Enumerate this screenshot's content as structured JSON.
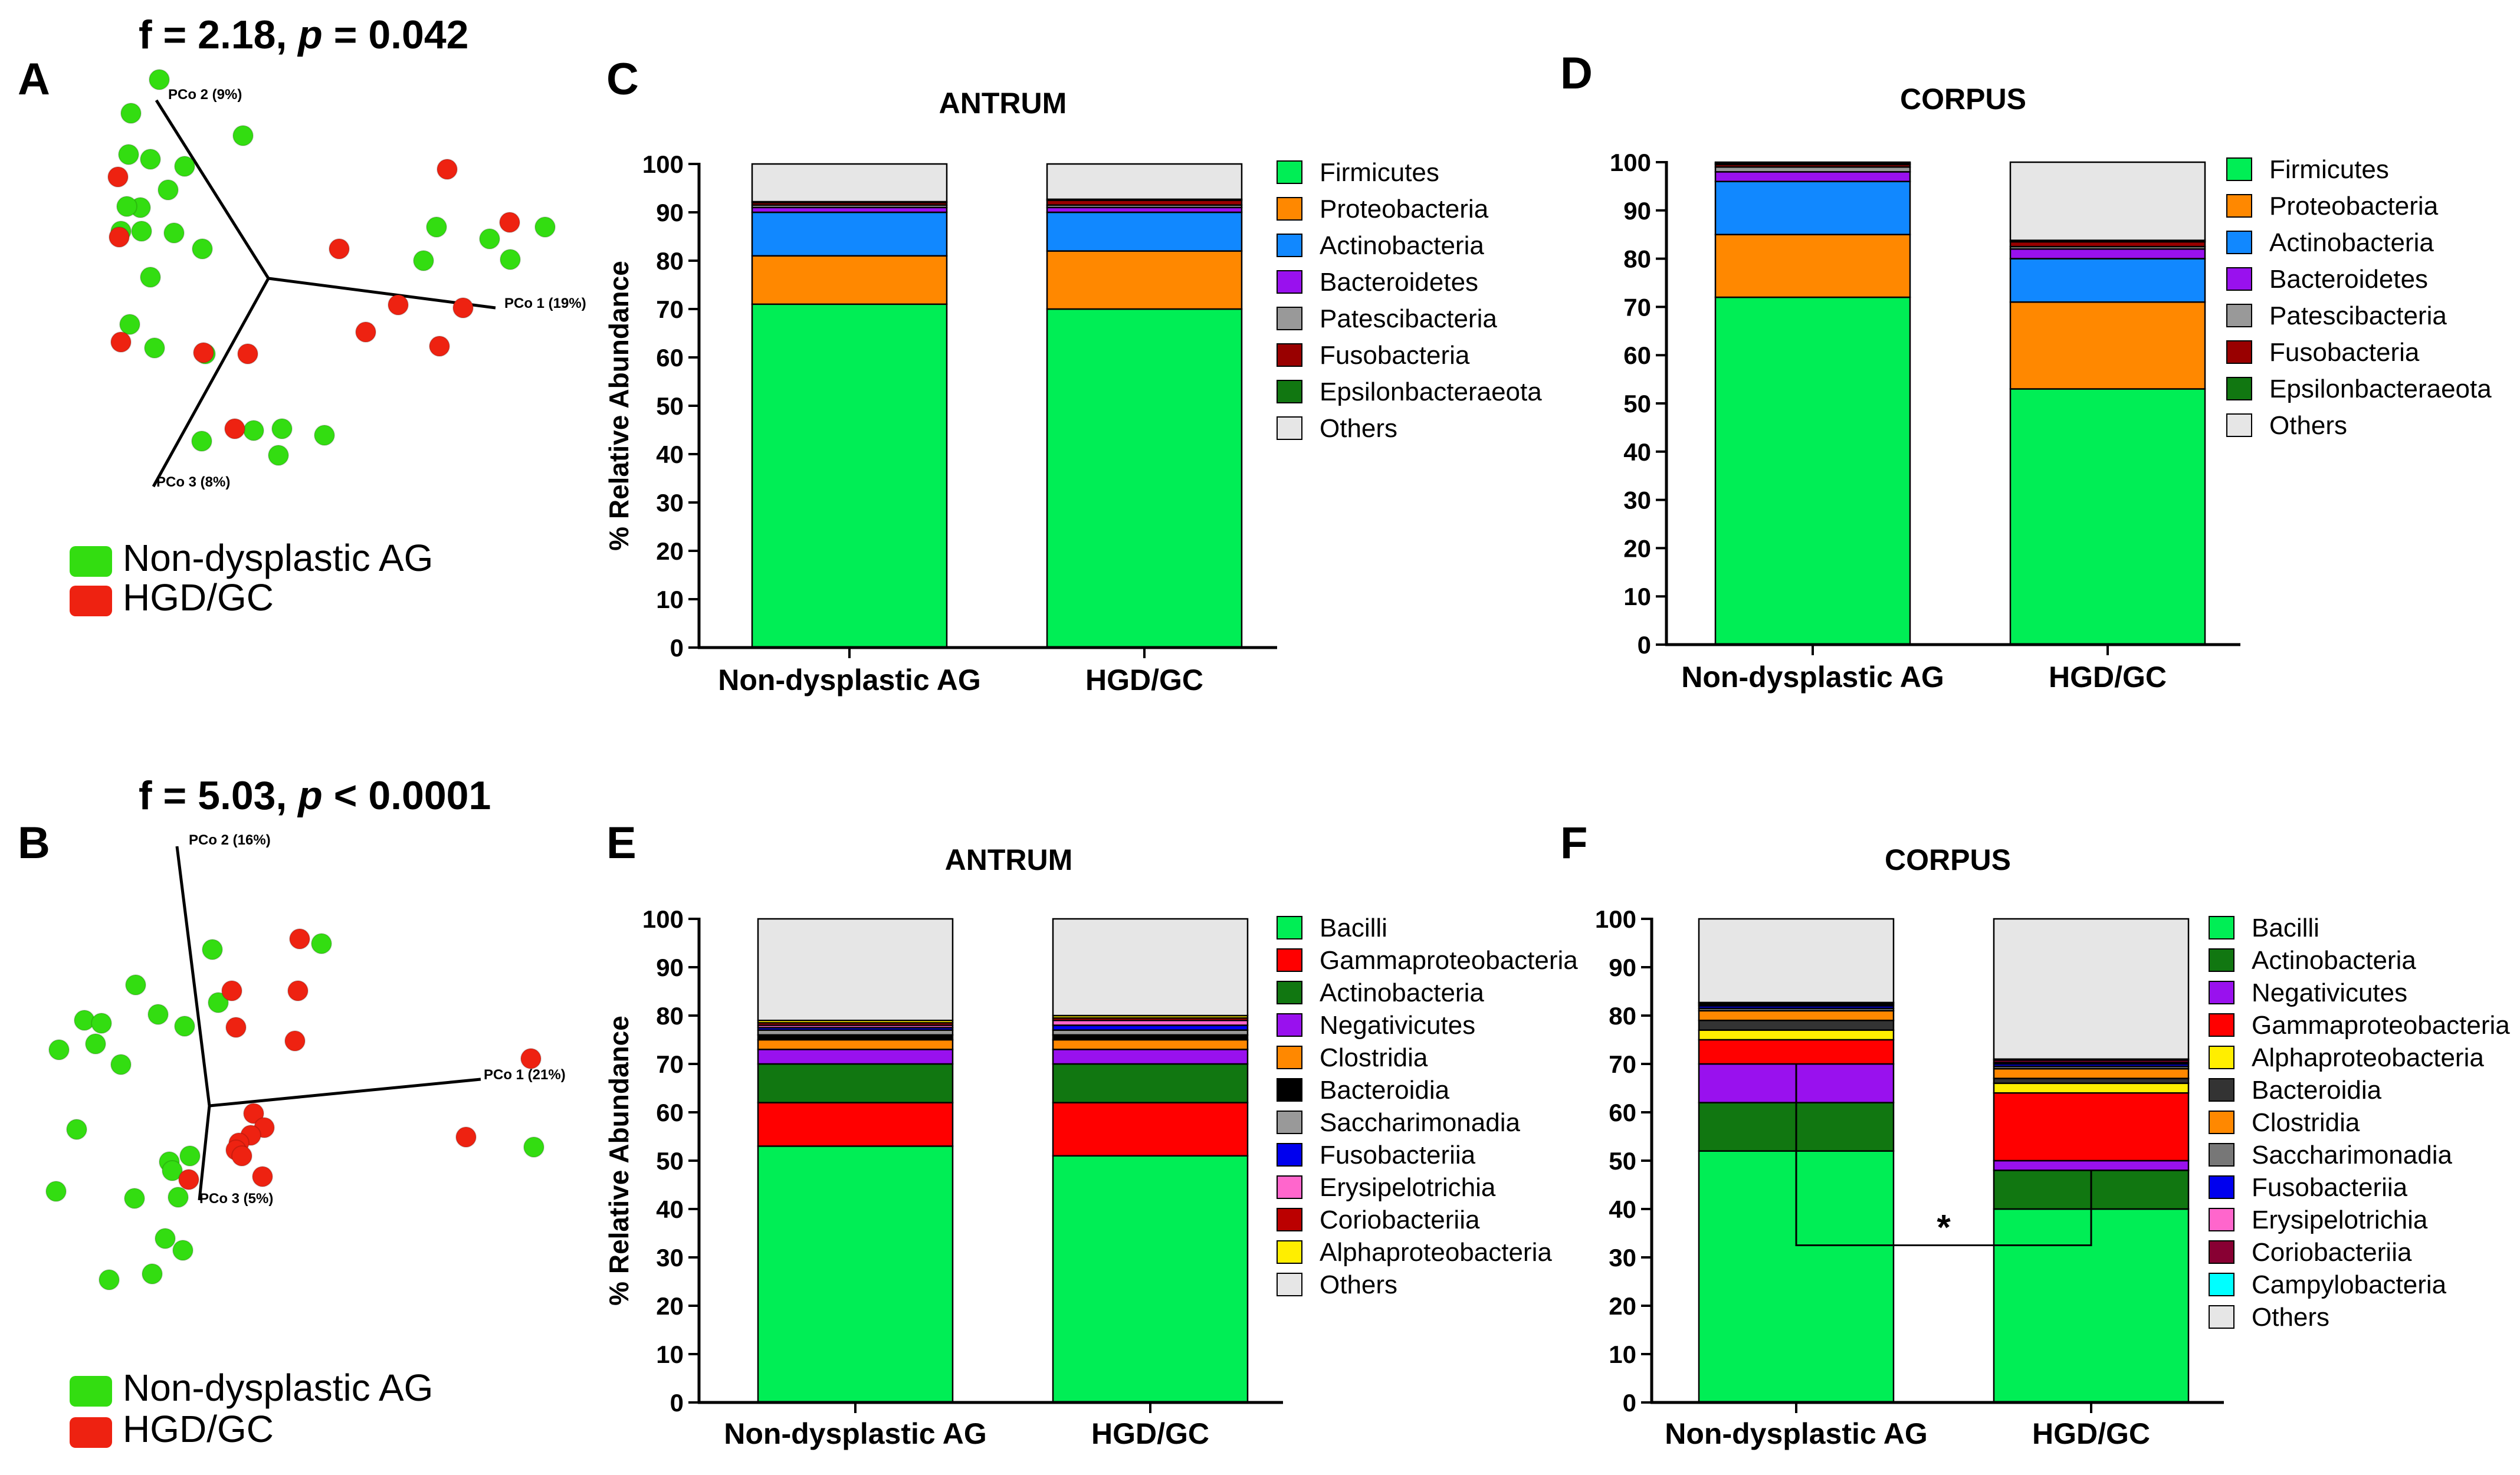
{
  "figure": {
    "panel_letters": [
      "A",
      "B",
      "C",
      "D",
      "E",
      "F"
    ]
  },
  "chart_data": [
    {
      "panel": "A",
      "type": "scatter",
      "subtype": "3d-pcoa",
      "stat_f": "f = 2.18, ",
      "stat_p_symbol": "p",
      "stat_p_value": " = 0.042",
      "axes": [
        "PCo 1 (19%)",
        "PCo 2 (9%)",
        "PCo 3 (8%)"
      ],
      "legend": [
        {
          "label": "Non-dysplastic AG",
          "color": "#33dd11"
        },
        {
          "label": "HGD/GC",
          "color": "#ee2211"
        }
      ],
      "groups": [
        {
          "name": "Non-dysplastic AG",
          "color": "#33dd11",
          "points": [
            [
              270,
              135
            ],
            [
              222,
              192
            ],
            [
              255,
              270
            ],
            [
              218,
              262
            ],
            [
              313,
              282
            ],
            [
              285,
              322
            ],
            [
              238,
              352
            ],
            [
              215,
              350
            ],
            [
              205,
              392
            ],
            [
              240,
              392
            ],
            [
              295,
              395
            ],
            [
              343,
              422
            ],
            [
              255,
              470
            ],
            [
              220,
              550
            ],
            [
              262,
              590
            ],
            [
              348,
              600
            ],
            [
              412,
              230
            ],
            [
              740,
              385
            ],
            [
              718,
              442
            ],
            [
              830,
              405
            ],
            [
              865,
              440
            ],
            [
              924,
              385
            ],
            [
              430,
              730
            ],
            [
              478,
              727
            ],
            [
              550,
              738
            ],
            [
              342,
              748
            ],
            [
              472,
              772
            ]
          ]
        },
        {
          "name": "HGD/GC",
          "color": "#ee2211",
          "points": [
            [
              200,
              300
            ],
            [
              202,
              402
            ],
            [
              758,
              287
            ],
            [
              575,
              422
            ],
            [
              864,
              377
            ],
            [
              785,
              522
            ],
            [
              205,
              580
            ],
            [
              345,
              598
            ],
            [
              420,
              600
            ],
            [
              675,
              517
            ],
            [
              620,
              563
            ],
            [
              745,
              587
            ],
            [
              398,
              727
            ]
          ]
        }
      ]
    },
    {
      "panel": "B",
      "type": "scatter",
      "subtype": "3d-pcoa",
      "stat_f": "f = 5.03, ",
      "stat_p_symbol": "p",
      "stat_p_value": " < 0.0001",
      "axes": [
        "PCo 1 (21%)",
        "PCo 2 (16%)",
        "PCo 3 (5%)"
      ],
      "legend": [
        {
          "label": "Non-dysplastic AG",
          "color": "#33dd11"
        },
        {
          "label": "HGD/GC",
          "color": "#ee2211"
        }
      ],
      "groups": [
        {
          "name": "Non-dysplastic AG",
          "color": "#33dd11",
          "points": [
            [
              545,
              1600
            ],
            [
              360,
              1610
            ],
            [
              370,
              1700
            ],
            [
              230,
              1670
            ],
            [
              268,
              1720
            ],
            [
              313,
              1740
            ],
            [
              143,
              1730
            ],
            [
              172,
              1735
            ],
            [
              162,
              1770
            ],
            [
              205,
              1805
            ],
            [
              100,
              1780
            ],
            [
              130,
              1915
            ],
            [
              287,
              1970
            ],
            [
              322,
              1960
            ],
            [
              292,
              1985
            ],
            [
              95,
              2020
            ],
            [
              228,
              2032
            ],
            [
              302,
              2030
            ],
            [
              280,
              2100
            ],
            [
              310,
              2120
            ],
            [
              185,
              2170
            ],
            [
              258,
              2160
            ],
            [
              905,
              1945
            ]
          ]
        },
        {
          "name": "HGD/GC",
          "color": "#ee2211",
          "points": [
            [
              508,
              1592
            ],
            [
              393,
              1680
            ],
            [
              505,
              1680
            ],
            [
              400,
              1742
            ],
            [
              500,
              1765
            ],
            [
              430,
              1888
            ],
            [
              448,
              1912
            ],
            [
              425,
              1925
            ],
            [
              405,
              1938
            ],
            [
              400,
              1950
            ],
            [
              410,
              1960
            ],
            [
              320,
              2000
            ],
            [
              445,
              1995
            ],
            [
              900,
              1795
            ],
            [
              790,
              1928
            ]
          ]
        }
      ]
    },
    {
      "panel": "C",
      "type": "bar",
      "stacked": true,
      "title": "ANTRUM",
      "ylabel": "% Relative Abundance",
      "ylim": [
        0,
        100
      ],
      "yticks": [
        0,
        10,
        20,
        30,
        40,
        50,
        60,
        70,
        80,
        90,
        100
      ],
      "categories": [
        "Non-dysplastic AG",
        "HGD/GC"
      ],
      "series": [
        {
          "name": "Firmicutes",
          "color": "#00ee55",
          "values": [
            71,
            70
          ]
        },
        {
          "name": "Proteobacteria",
          "color": "#ff8800",
          "values": [
            10,
            12
          ]
        },
        {
          "name": "Actinobacteria",
          "color": "#1188ff",
          "values": [
            9,
            8
          ]
        },
        {
          "name": "Bacteroidetes",
          "color": "#9911ee",
          "values": [
            1,
            1
          ]
        },
        {
          "name": "Patescibacteria",
          "color": "#999999",
          "values": [
            0.5,
            0.5
          ]
        },
        {
          "name": "Fusobacteria",
          "color": "#990000",
          "values": [
            0.5,
            1
          ]
        },
        {
          "name": "Epsilonbacteraeota",
          "color": "#117711",
          "values": [
            0.2,
            0.2
          ]
        },
        {
          "name": "Others",
          "color": "#e6e6e6",
          "values": [
            7.8,
            7.3
          ]
        }
      ]
    },
    {
      "panel": "D",
      "type": "bar",
      "stacked": true,
      "title": "CORPUS",
      "ylabel": "",
      "ylim": [
        0,
        100
      ],
      "yticks": [
        0,
        10,
        20,
        30,
        40,
        50,
        60,
        70,
        80,
        90,
        100
      ],
      "categories": [
        "Non-dysplastic AG",
        "HGD/GC"
      ],
      "series": [
        {
          "name": "Firmicutes",
          "color": "#00ee55",
          "values": [
            72,
            53
          ]
        },
        {
          "name": "Proteobacteria",
          "color": "#ff8800",
          "values": [
            13,
            18
          ]
        },
        {
          "name": "Actinobacteria",
          "color": "#1188ff",
          "values": [
            11,
            9
          ]
        },
        {
          "name": "Bacteroidetes",
          "color": "#9911ee",
          "values": [
            2,
            2
          ]
        },
        {
          "name": "Patescibacteria",
          "color": "#999999",
          "values": [
            1,
            0.5
          ]
        },
        {
          "name": "Fusobacteria",
          "color": "#990000",
          "values": [
            0.5,
            1
          ]
        },
        {
          "name": "Epsilonbacteraeota",
          "color": "#117711",
          "values": [
            0.3,
            0.3
          ]
        },
        {
          "name": "Others",
          "color": "#e6e6e6",
          "values": [
            0.2,
            16.2
          ]
        }
      ]
    },
    {
      "panel": "E",
      "type": "bar",
      "stacked": true,
      "title": "ANTRUM",
      "ylabel": "% Relative Abundance",
      "ylim": [
        0,
        100
      ],
      "yticks": [
        0,
        10,
        20,
        30,
        40,
        50,
        60,
        70,
        80,
        90,
        100
      ],
      "categories": [
        "Non-dysplastic AG",
        "HGD/GC"
      ],
      "series": [
        {
          "name": "Bacilli",
          "color": "#00ee55",
          "values": [
            53,
            51
          ]
        },
        {
          "name": "Gammaproteobacteria",
          "color": "#ff0000",
          "values": [
            9,
            11
          ]
        },
        {
          "name": "Actinobacteria",
          "color": "#117711",
          "values": [
            8,
            8
          ]
        },
        {
          "name": "Negativicutes",
          "color": "#9911ee",
          "values": [
            3,
            3
          ]
        },
        {
          "name": "Clostridia",
          "color": "#ff8800",
          "values": [
            2,
            2
          ]
        },
        {
          "name": "Bacteroidia",
          "color": "#000000",
          "values": [
            1,
            1
          ]
        },
        {
          "name": "Saccharimonadia",
          "color": "#999999",
          "values": [
            1,
            1
          ]
        },
        {
          "name": "Fusobacteriia",
          "color": "#0000ee",
          "values": [
            0.5,
            1
          ]
        },
        {
          "name": "Erysipelotrichia",
          "color": "#ff66cc",
          "values": [
            0.5,
            1
          ]
        },
        {
          "name": "Coriobacteriia",
          "color": "#bb0000",
          "values": [
            0.5,
            0.5
          ]
        },
        {
          "name": "Alphaproteobacteria",
          "color": "#ffee00",
          "values": [
            0.5,
            0.5
          ]
        },
        {
          "name": "Others",
          "color": "#e6e6e6",
          "values": [
            21,
            20
          ]
        }
      ]
    },
    {
      "panel": "F",
      "type": "bar",
      "stacked": true,
      "title": "CORPUS",
      "ylabel": "",
      "ylim": [
        0,
        100
      ],
      "yticks": [
        0,
        10,
        20,
        30,
        40,
        50,
        60,
        70,
        80,
        90,
        100
      ],
      "categories": [
        "Non-dysplastic AG",
        "HGD/GC"
      ],
      "series": [
        {
          "name": "Bacilli",
          "color": "#00ee55",
          "values": [
            52,
            40
          ]
        },
        {
          "name": "Actinobacteria",
          "color": "#117711",
          "values": [
            10,
            8
          ]
        },
        {
          "name": "Negativicutes",
          "color": "#9911ee",
          "values": [
            8,
            2
          ]
        },
        {
          "name": "Gammaproteobacteria",
          "color": "#ff0000",
          "values": [
            5,
            14
          ]
        },
        {
          "name": "Alphaproteobacteria",
          "color": "#ffee00",
          "values": [
            2,
            2
          ]
        },
        {
          "name": "Bacteroidia",
          "color": "#333333",
          "values": [
            2,
            1
          ]
        },
        {
          "name": "Clostridia",
          "color": "#ff8800",
          "values": [
            2,
            2
          ]
        },
        {
          "name": "Saccharimonadia",
          "color": "#777777",
          "values": [
            0.5,
            0.5
          ]
        },
        {
          "name": "Fusobacteriia",
          "color": "#0000ee",
          "values": [
            0.5,
            0.5
          ]
        },
        {
          "name": "Erysipelotrichia",
          "color": "#ff66cc",
          "values": [
            0.3,
            0.3
          ]
        },
        {
          "name": "Coriobacteriia",
          "color": "#880033",
          "values": [
            0.3,
            0.5
          ]
        },
        {
          "name": "Campylobacteria",
          "color": "#00ffff",
          "values": [
            0.1,
            0.2
          ]
        },
        {
          "name": "Others",
          "color": "#e6e6e6",
          "values": [
            17.3,
            29
          ]
        }
      ],
      "annotation": {
        "text": "*",
        "compares": [
          "Non-dysplastic AG",
          "HGD/GC"
        ],
        "series": "Bacilli"
      }
    }
  ]
}
